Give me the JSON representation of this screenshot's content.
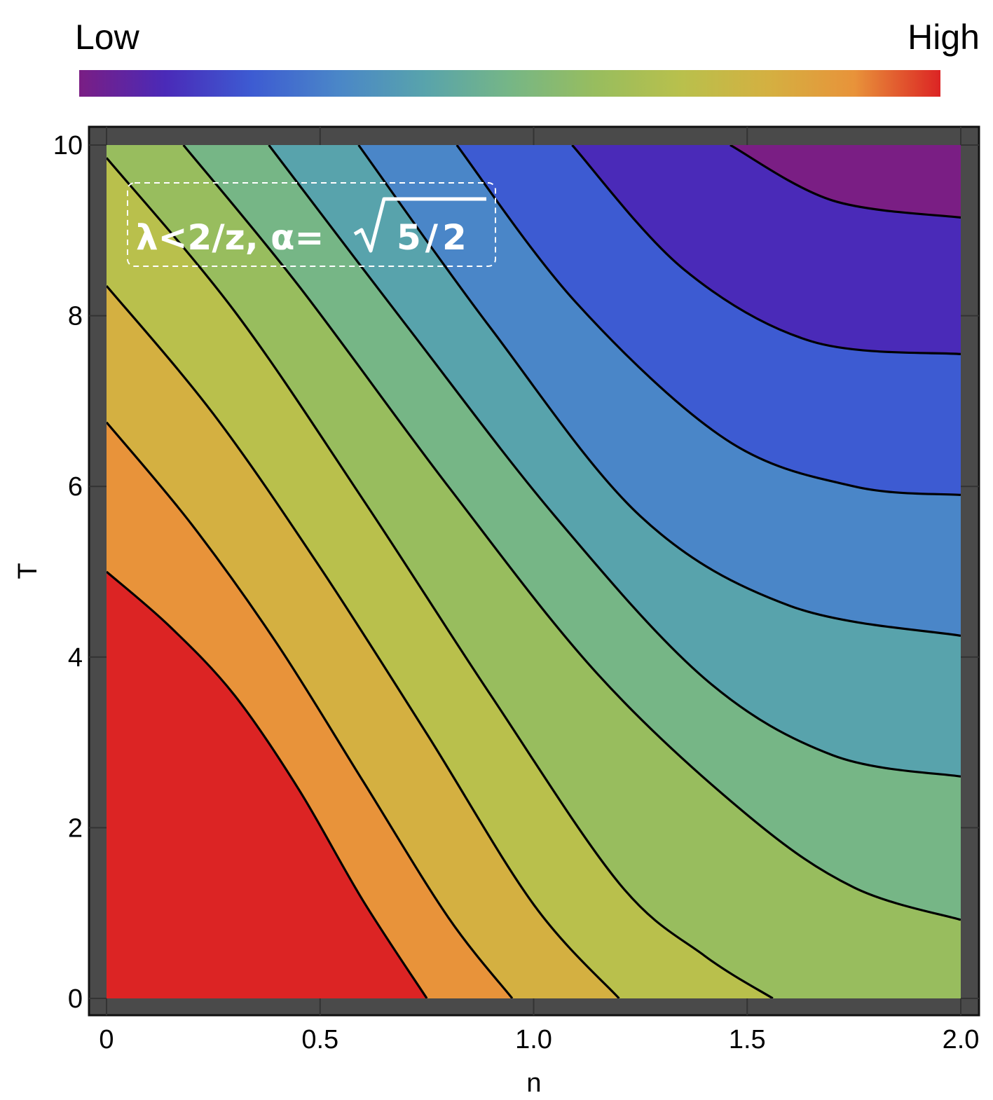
{
  "chart_data": {
    "type": "contour",
    "xlabel": "n",
    "ylabel": "T",
    "xlim": [
      0,
      2
    ],
    "ylim": [
      0,
      10
    ],
    "x_ticks": [
      "0",
      "0.5",
      "1.0",
      "1.5",
      "2.0"
    ],
    "x_tick_values": [
      0,
      0.5,
      1.0,
      1.5,
      2.0
    ],
    "y_ticks": [
      "0",
      "2",
      "4",
      "6",
      "8",
      "10"
    ],
    "y_tick_values": [
      0,
      2,
      4,
      6,
      8,
      10
    ],
    "grid": true,
    "annotation": "λ<2/z, α=√5/2",
    "annotation_parts": {
      "main": "λ<2/z, α=",
      "radical": "5/2"
    },
    "colorbar": {
      "low_label": "Low",
      "high_label": "High",
      "placement": "top",
      "colors": [
        "#7a1e84",
        "#4a2ab8",
        "#3d5bd2",
        "#4a86c8",
        "#58a3ac",
        "#76b686",
        "#98bd5e",
        "#b9c04c",
        "#d4b041",
        "#e8933a",
        "#dc2424"
      ]
    },
    "contours": [
      {
        "level": 1,
        "points": [
          [
            0,
            5.0
          ],
          [
            0.15,
            4.35
          ],
          [
            0.3,
            3.55
          ],
          [
            0.45,
            2.45
          ],
          [
            0.6,
            1.15
          ],
          [
            0.75,
            0
          ]
        ]
      },
      {
        "level": 2,
        "points": [
          [
            0,
            6.75
          ],
          [
            0.2,
            5.55
          ],
          [
            0.4,
            4.15
          ],
          [
            0.6,
            2.55
          ],
          [
            0.8,
            0.95
          ],
          [
            0.95,
            0
          ]
        ]
      },
      {
        "level": 3,
        "points": [
          [
            0,
            8.35
          ],
          [
            0.25,
            6.85
          ],
          [
            0.5,
            5.05
          ],
          [
            0.75,
            3.1
          ],
          [
            1.0,
            1.1
          ],
          [
            1.2,
            0
          ]
        ]
      },
      {
        "level": 4,
        "points": [
          [
            0,
            9.85
          ],
          [
            0.3,
            8.05
          ],
          [
            0.6,
            5.85
          ],
          [
            0.9,
            3.55
          ],
          [
            1.2,
            1.35
          ],
          [
            1.4,
            0.5
          ],
          [
            1.56,
            0
          ]
        ]
      },
      {
        "level": 5,
        "points": [
          [
            0.18,
            10
          ],
          [
            0.45,
            8.35
          ],
          [
            0.8,
            6.0
          ],
          [
            1.15,
            3.8
          ],
          [
            1.5,
            2.15
          ],
          [
            1.75,
            1.3
          ],
          [
            2.0,
            0.92
          ]
        ]
      },
      {
        "level": 6,
        "points": [
          [
            0.38,
            10
          ],
          [
            0.7,
            7.9
          ],
          [
            1.05,
            5.65
          ],
          [
            1.4,
            3.75
          ],
          [
            1.7,
            2.85
          ],
          [
            2.0,
            2.6
          ]
        ]
      },
      {
        "level": 7,
        "points": [
          [
            0.59,
            10
          ],
          [
            0.9,
            7.85
          ],
          [
            1.25,
            5.65
          ],
          [
            1.6,
            4.6
          ],
          [
            2.0,
            4.25
          ]
        ]
      },
      {
        "level": 8,
        "points": [
          [
            0.82,
            10
          ],
          [
            1.1,
            8.15
          ],
          [
            1.45,
            6.55
          ],
          [
            1.75,
            6.0
          ],
          [
            2.0,
            5.9
          ]
        ]
      },
      {
        "level": 9,
        "points": [
          [
            1.09,
            10
          ],
          [
            1.35,
            8.55
          ],
          [
            1.65,
            7.7
          ],
          [
            2.0,
            7.55
          ]
        ]
      },
      {
        "level": 10,
        "points": [
          [
            1.46,
            10
          ],
          [
            1.7,
            9.35
          ],
          [
            2.0,
            9.15
          ]
        ]
      }
    ]
  }
}
